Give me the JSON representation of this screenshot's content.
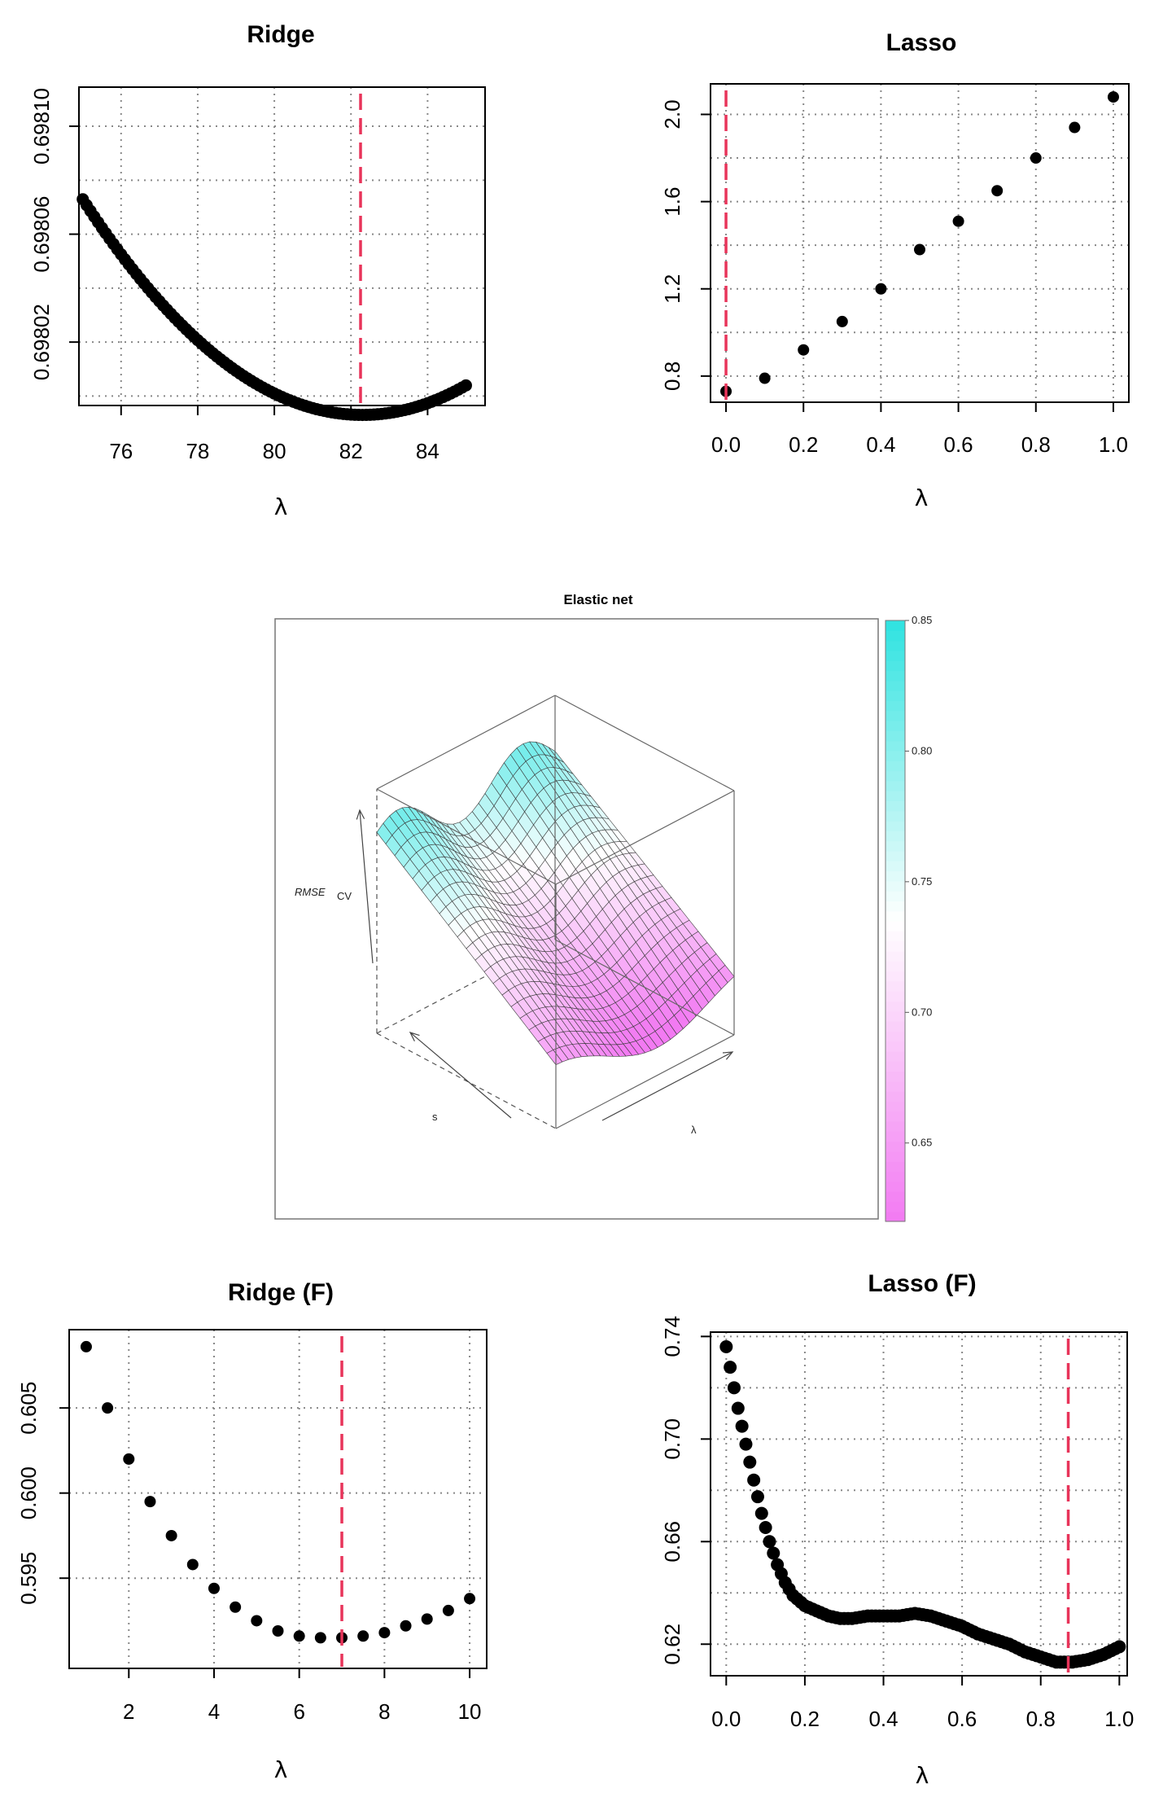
{
  "chart_data": [
    {
      "id": "ridge",
      "type": "scatter",
      "title": "Ridge",
      "xlabel": "λ",
      "ylabel": "",
      "xlim": [
        74.9,
        85.5
      ],
      "ylim": [
        0.6979965,
        0.6981145
      ],
      "xticks": [
        76,
        78,
        80,
        82,
        84
      ],
      "xtick_labels": [
        "76",
        "78",
        "80",
        "82",
        "84"
      ],
      "yticks": [
        0.69802,
        0.69806,
        0.6981
      ],
      "ytick_labels": [
        "0.69802",
        "0.69806",
        "0.69810"
      ],
      "ygrid": [
        0.698,
        0.69802,
        0.69804,
        0.69806,
        0.69808,
        0.6981
      ],
      "points": {
        "x_start": 75.0,
        "x_end": 85.0,
        "step": 0.1,
        "a": 1.5e-06,
        "vertex_x": 82.3,
        "vertex_y": 0.697993
      },
      "vline": 82.25,
      "grid": true
    },
    {
      "id": "lasso",
      "type": "scatter",
      "title": "Lasso",
      "xlabel": "λ",
      "ylabel": "",
      "xlim": [
        -0.04,
        1.04
      ],
      "ylim": [
        0.68,
        2.14
      ],
      "xticks": [
        0,
        0.2,
        0.4,
        0.6,
        0.8,
        1.0
      ],
      "xtick_labels": [
        "0.0",
        "0.2",
        "0.4",
        "0.6",
        "0.8",
        "1.0"
      ],
      "yticks": [
        0.8,
        1.2,
        1.6,
        2.0
      ],
      "ytick_labels": [
        "0.8",
        "1.2",
        "1.6",
        "2.0"
      ],
      "ygrid": [
        0.8,
        1.0,
        1.2,
        1.4,
        1.6,
        1.8,
        2.0
      ],
      "x": [
        0,
        0.1,
        0.2,
        0.3,
        0.4,
        0.5,
        0.6,
        0.7,
        0.8,
        0.9,
        1.0
      ],
      "y": [
        0.73,
        0.79,
        0.92,
        1.05,
        1.2,
        1.38,
        1.51,
        1.65,
        1.8,
        1.94,
        2.08
      ],
      "vline": 0.0,
      "grid": true
    },
    {
      "id": "elastic",
      "type": "surface",
      "title": "Elastic net",
      "zlabel": "RMSE",
      "zlabel_sub": "CV",
      "xlabel": "λ",
      "ylabel": "s",
      "colorbar_ticks": [
        0.65,
        0.7,
        0.75,
        0.8,
        0.85
      ],
      "colorbar_tick_labels": [
        "0.65",
        "0.70",
        "0.75",
        "0.80",
        "0.85"
      ],
      "colorbar_range": [
        0.62,
        0.85
      ],
      "colors": {
        "low": "#f27af2",
        "mid": "#ffffff",
        "high": "#2fe3e0"
      }
    },
    {
      "id": "ridge_f",
      "type": "scatter",
      "title": "Ridge (F)",
      "xlabel": "λ",
      "ylabel": "",
      "xlim": [
        0.6,
        10.4
      ],
      "ylim": [
        0.5897,
        0.6096
      ],
      "xticks": [
        2,
        4,
        6,
        8,
        10
      ],
      "xtick_labels": [
        "2",
        "4",
        "6",
        "8",
        "10"
      ],
      "yticks": [
        0.595,
        0.6,
        0.605
      ],
      "ytick_labels": [
        "0.595",
        "0.600",
        "0.605"
      ],
      "ygrid": [
        0.595,
        0.6,
        0.605
      ],
      "x": [
        1,
        1.5,
        2,
        2.5,
        3,
        3.5,
        4,
        4.5,
        5,
        5.5,
        6,
        6.5,
        7,
        7.5,
        8,
        8.5,
        9,
        9.5,
        10
      ],
      "y": [
        0.6086,
        0.605,
        0.602,
        0.5995,
        0.5975,
        0.5958,
        0.5944,
        0.5933,
        0.5925,
        0.5919,
        0.5916,
        0.5915,
        0.5915,
        0.5916,
        0.5918,
        0.5922,
        0.5926,
        0.5931,
        0.5938
      ],
      "vline": 7.0,
      "grid": true
    },
    {
      "id": "lasso_f",
      "type": "scatter",
      "title": "Lasso (F)",
      "xlabel": "λ",
      "ylabel": "",
      "xlim": [
        -0.04,
        1.02
      ],
      "ylim": [
        0.6077,
        0.7417
      ],
      "xticks": [
        0,
        0.2,
        0.4,
        0.6,
        0.8,
        1.0
      ],
      "xtick_labels": [
        "0.0",
        "0.2",
        "0.4",
        "0.6",
        "0.8",
        "1.0"
      ],
      "yticks": [
        0.62,
        0.66,
        0.7,
        0.74
      ],
      "ytick_labels": [
        "0.62",
        "0.66",
        "0.70",
        "0.74"
      ],
      "ygrid": [
        0.62,
        0.64,
        0.66,
        0.68,
        0.7,
        0.72,
        0.74
      ],
      "curve_knots_x": [
        0,
        0.01,
        0.02,
        0.03,
        0.05,
        0.07,
        0.09,
        0.11,
        0.13,
        0.15,
        0.17,
        0.2,
        0.23,
        0.26,
        0.29,
        0.32,
        0.36,
        0.4,
        0.44,
        0.48,
        0.52,
        0.56,
        0.6,
        0.64,
        0.68,
        0.72,
        0.76,
        0.8,
        0.84,
        0.88,
        0.92,
        0.96,
        1.0
      ],
      "curve_knots_y": [
        0.736,
        0.728,
        0.72,
        0.712,
        0.698,
        0.684,
        0.671,
        0.66,
        0.651,
        0.644,
        0.639,
        0.635,
        0.633,
        0.631,
        0.63,
        0.63,
        0.631,
        0.631,
        0.631,
        0.632,
        0.631,
        0.629,
        0.627,
        0.624,
        0.622,
        0.62,
        0.617,
        0.615,
        0.613,
        0.613,
        0.614,
        0.616,
        0.619
      ],
      "point_step": 0.01,
      "vline": 0.87,
      "grid": true
    }
  ]
}
